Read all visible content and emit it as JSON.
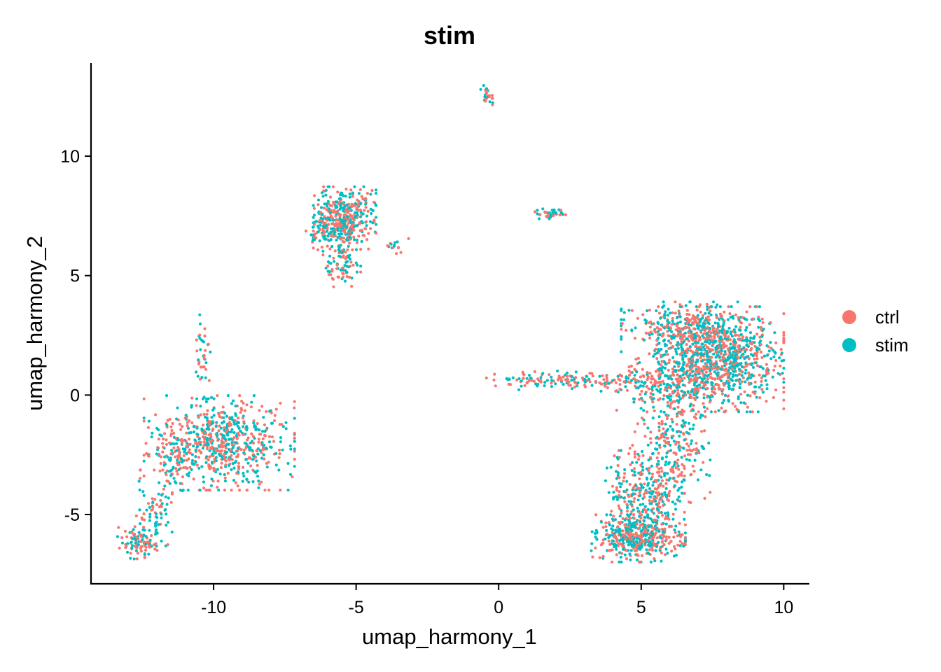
{
  "chart_data": {
    "type": "scatter",
    "title": "stim",
    "xlabel": "umap_harmony_1",
    "ylabel": "umap_harmony_2",
    "xlim": [
      -14.3,
      10.9
    ],
    "ylim": [
      -7.9,
      13.9
    ],
    "xticks": [
      -10,
      -5,
      0,
      5,
      10
    ],
    "yticks": [
      -5,
      0,
      5,
      10
    ],
    "xtick_labels": [
      "-10",
      "-5",
      "0",
      "5",
      "10"
    ],
    "ytick_labels": [
      "-5",
      "0",
      "5",
      "10"
    ],
    "grid": false,
    "legend_position": "right",
    "series": [
      {
        "name": "ctrl",
        "color": "#F8766D"
      },
      {
        "name": "stim",
        "color": "#00BFC4"
      }
    ],
    "clusters": [
      {
        "cx": -9.8,
        "cy": -2.0,
        "sx": 1.2,
        "sy": 0.9,
        "n": 650
      },
      {
        "cx": -11.4,
        "cy": -2.6,
        "sx": 0.35,
        "sy": 0.7,
        "n": 80
      },
      {
        "cx": -12.1,
        "cy": -4.9,
        "sx": 0.3,
        "sy": 0.8,
        "n": 80
      },
      {
        "cx": -12.6,
        "cy": -6.2,
        "sx": 0.35,
        "sy": 0.3,
        "n": 90
      },
      {
        "cx": -10.4,
        "cy": 1.6,
        "sx": 0.15,
        "sy": 0.8,
        "n": 40
      },
      {
        "cx": -5.4,
        "cy": 7.4,
        "sx": 0.5,
        "sy": 0.6,
        "n": 420
      },
      {
        "cx": -5.5,
        "cy": 5.5,
        "sx": 0.3,
        "sy": 0.5,
        "n": 90
      },
      {
        "cx": -6.2,
        "cy": 6.8,
        "sx": 0.3,
        "sy": 0.3,
        "n": 40
      },
      {
        "cx": -3.6,
        "cy": 6.2,
        "sx": 0.2,
        "sy": 0.2,
        "n": 15
      },
      {
        "cx": -0.4,
        "cy": 12.5,
        "sx": 0.12,
        "sy": 0.25,
        "n": 25
      },
      {
        "cx": 1.8,
        "cy": 7.6,
        "sx": 0.25,
        "sy": 0.1,
        "n": 45
      },
      {
        "cx": 7.8,
        "cy": 1.5,
        "sx": 1.0,
        "sy": 1.0,
        "n": 900
      },
      {
        "cx": 6.5,
        "cy": 2.8,
        "sx": 1.0,
        "sy": 0.5,
        "n": 300
      },
      {
        "cx": 5.9,
        "cy": 0.6,
        "sx": 0.8,
        "sy": 0.6,
        "n": 250
      },
      {
        "cx": 2.6,
        "cy": 0.6,
        "sx": 1.4,
        "sy": 0.2,
        "n": 160
      },
      {
        "cx": 6.1,
        "cy": -2.3,
        "sx": 0.6,
        "sy": 1.0,
        "n": 250
      },
      {
        "cx": 5.2,
        "cy": -4.3,
        "sx": 0.6,
        "sy": 0.9,
        "n": 260
      },
      {
        "cx": 4.9,
        "cy": -6.0,
        "sx": 0.75,
        "sy": 0.45,
        "n": 380
      },
      {
        "cx": 4.3,
        "cy": -4.3,
        "sx": 0.25,
        "sy": 1.0,
        "n": 60
      }
    ]
  }
}
